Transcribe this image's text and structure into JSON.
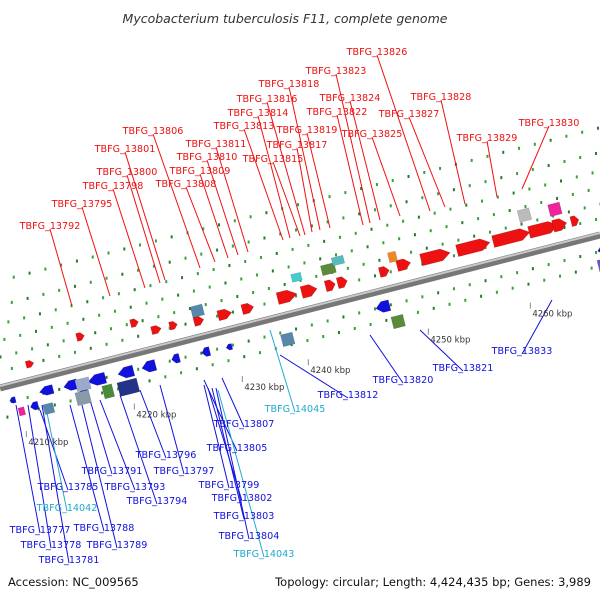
{
  "title": "Mycobacterium tuberculosis F11, complete genome",
  "accession": "Accession: NC_009565",
  "summary": "Topology: circular; Length: 4,424,435 bp; Genes: 3,989",
  "colors": {
    "forward": "#ee1111",
    "reverse": "#1111dd",
    "rna": "#22aacc",
    "axis": "#888888"
  },
  "ticks": [
    "4210 kbp",
    "4220 kbp",
    "4230 kbp",
    "4240 kbp",
    "4250 kbp",
    "4260 kbp"
  ],
  "forward_genes": [
    "TBFG_13792",
    "TBFG_13795",
    "TBFG_13798",
    "TBFG_13800",
    "TBFG_13801",
    "TBFG_13806",
    "TBFG_13808",
    "TBFG_13809",
    "TBFG_13810",
    "TBFG_13811",
    "TBFG_13813",
    "TBFG_13814",
    "TBFG_13815",
    "TBFG_13816",
    "TBFG_13817",
    "TBFG_13818",
    "TBFG_13819",
    "TBFG_13822",
    "TBFG_13823",
    "TBFG_13824",
    "TBFG_13825",
    "TBFG_13826",
    "TBFG_13827",
    "TBFG_13828",
    "TBFG_13829",
    "TBFG_13830"
  ],
  "reverse_genes": [
    "TBFG_13777",
    "TBFG_13778",
    "TBFG_13781",
    "TBFG_13785",
    "TBFG_13788",
    "TBFG_13789",
    "TBFG_13791",
    "TBFG_13793",
    "TBFG_13794",
    "TBFG_13796",
    "TBFG_13797",
    "TBFG_13799",
    "TBFG_13802",
    "TBFG_13803",
    "TBFG_13804",
    "TBFG_13805",
    "TBFG_13807",
    "TBFG_13812",
    "TBFG_13820",
    "TBFG_13821",
    "TBFG_13833"
  ],
  "rna_genes": [
    "TBFG_14042",
    "TBFG_14043",
    "TBFG_14045"
  ]
}
